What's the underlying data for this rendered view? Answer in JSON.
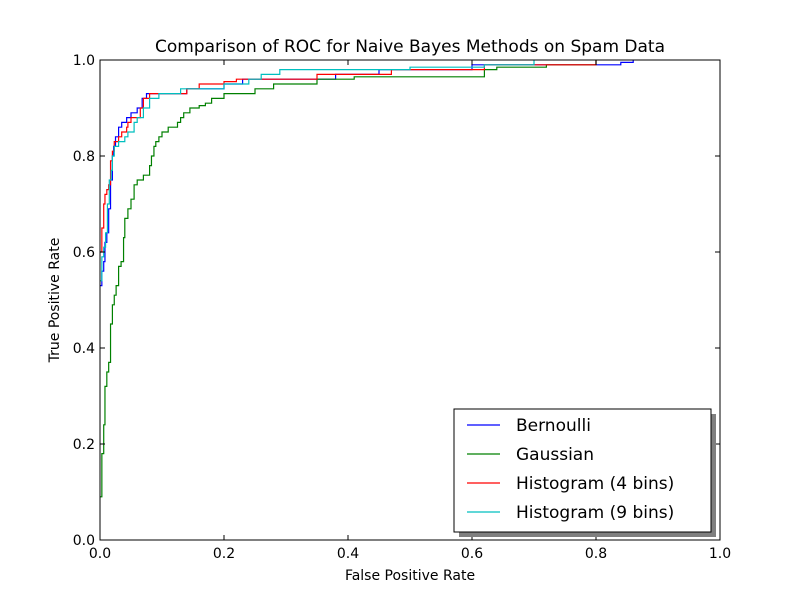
{
  "chart_data": {
    "type": "line",
    "title": "Comparison of ROC for Naive Bayes Methods on Spam Data",
    "xlabel": "False Positive Rate",
    "ylabel": "True Positive Rate",
    "xlim": [
      0.0,
      1.0
    ],
    "ylim": [
      0.0,
      1.0
    ],
    "xticks": [
      "0.0",
      "0.2",
      "0.4",
      "0.6",
      "0.8",
      "1.0"
    ],
    "yticks": [
      "0.0",
      "0.2",
      "0.4",
      "0.6",
      "0.8",
      "1.0"
    ],
    "grid": false,
    "legend_position": "lower-right",
    "series": [
      {
        "name": "Bernoulli",
        "color": "#0000ff",
        "points": [
          [
            0.0,
            0.53
          ],
          [
            0.003,
            0.53
          ],
          [
            0.003,
            0.56
          ],
          [
            0.006,
            0.56
          ],
          [
            0.006,
            0.58
          ],
          [
            0.008,
            0.58
          ],
          [
            0.008,
            0.62
          ],
          [
            0.011,
            0.62
          ],
          [
            0.011,
            0.64
          ],
          [
            0.014,
            0.64
          ],
          [
            0.014,
            0.69
          ],
          [
            0.017,
            0.69
          ],
          [
            0.017,
            0.75
          ],
          [
            0.02,
            0.75
          ],
          [
            0.02,
            0.8
          ],
          [
            0.022,
            0.8
          ],
          [
            0.022,
            0.82
          ],
          [
            0.025,
            0.82
          ],
          [
            0.025,
            0.84
          ],
          [
            0.03,
            0.84
          ],
          [
            0.03,
            0.86
          ],
          [
            0.035,
            0.86
          ],
          [
            0.035,
            0.87
          ],
          [
            0.043,
            0.87
          ],
          [
            0.043,
            0.88
          ],
          [
            0.05,
            0.88
          ],
          [
            0.05,
            0.89
          ],
          [
            0.06,
            0.89
          ],
          [
            0.06,
            0.9
          ],
          [
            0.068,
            0.9
          ],
          [
            0.068,
            0.92
          ],
          [
            0.075,
            0.92
          ],
          [
            0.075,
            0.93
          ],
          [
            0.14,
            0.93
          ],
          [
            0.14,
            0.94
          ],
          [
            0.2,
            0.94
          ],
          [
            0.2,
            0.95
          ],
          [
            0.23,
            0.95
          ],
          [
            0.23,
            0.96
          ],
          [
            0.38,
            0.96
          ],
          [
            0.38,
            0.97
          ],
          [
            0.45,
            0.97
          ],
          [
            0.45,
            0.98
          ],
          [
            0.6,
            0.98
          ],
          [
            0.6,
            0.99
          ],
          [
            0.84,
            0.99
          ],
          [
            0.84,
            0.995
          ],
          [
            0.86,
            0.995
          ],
          [
            0.86,
            1.0
          ]
        ]
      },
      {
        "name": "Gaussian",
        "color": "#008000",
        "points": [
          [
            0.0,
            0.09
          ],
          [
            0.003,
            0.09
          ],
          [
            0.003,
            0.18
          ],
          [
            0.006,
            0.18
          ],
          [
            0.006,
            0.24
          ],
          [
            0.008,
            0.24
          ],
          [
            0.008,
            0.32
          ],
          [
            0.011,
            0.32
          ],
          [
            0.011,
            0.35
          ],
          [
            0.014,
            0.35
          ],
          [
            0.014,
            0.37
          ],
          [
            0.017,
            0.37
          ],
          [
            0.017,
            0.45
          ],
          [
            0.02,
            0.45
          ],
          [
            0.02,
            0.49
          ],
          [
            0.023,
            0.49
          ],
          [
            0.023,
            0.51
          ],
          [
            0.026,
            0.51
          ],
          [
            0.026,
            0.53
          ],
          [
            0.03,
            0.53
          ],
          [
            0.03,
            0.57
          ],
          [
            0.034,
            0.57
          ],
          [
            0.034,
            0.58
          ],
          [
            0.038,
            0.58
          ],
          [
            0.038,
            0.63
          ],
          [
            0.04,
            0.63
          ],
          [
            0.04,
            0.67
          ],
          [
            0.045,
            0.67
          ],
          [
            0.045,
            0.69
          ],
          [
            0.05,
            0.69
          ],
          [
            0.05,
            0.71
          ],
          [
            0.055,
            0.71
          ],
          [
            0.055,
            0.74
          ],
          [
            0.06,
            0.74
          ],
          [
            0.06,
            0.75
          ],
          [
            0.07,
            0.75
          ],
          [
            0.07,
            0.76
          ],
          [
            0.08,
            0.76
          ],
          [
            0.08,
            0.78
          ],
          [
            0.083,
            0.78
          ],
          [
            0.083,
            0.8
          ],
          [
            0.087,
            0.8
          ],
          [
            0.087,
            0.82
          ],
          [
            0.09,
            0.82
          ],
          [
            0.09,
            0.83
          ],
          [
            0.095,
            0.83
          ],
          [
            0.095,
            0.84
          ],
          [
            0.1,
            0.84
          ],
          [
            0.1,
            0.85
          ],
          [
            0.11,
            0.85
          ],
          [
            0.11,
            0.86
          ],
          [
            0.125,
            0.86
          ],
          [
            0.125,
            0.87
          ],
          [
            0.13,
            0.87
          ],
          [
            0.13,
            0.88
          ],
          [
            0.135,
            0.88
          ],
          [
            0.135,
            0.89
          ],
          [
            0.145,
            0.89
          ],
          [
            0.145,
            0.9
          ],
          [
            0.16,
            0.9
          ],
          [
            0.16,
            0.905
          ],
          [
            0.17,
            0.905
          ],
          [
            0.17,
            0.91
          ],
          [
            0.18,
            0.91
          ],
          [
            0.18,
            0.92
          ],
          [
            0.2,
            0.92
          ],
          [
            0.2,
            0.93
          ],
          [
            0.25,
            0.93
          ],
          [
            0.25,
            0.94
          ],
          [
            0.28,
            0.94
          ],
          [
            0.28,
            0.95
          ],
          [
            0.35,
            0.95
          ],
          [
            0.35,
            0.96
          ],
          [
            0.41,
            0.96
          ],
          [
            0.41,
            0.965
          ],
          [
            0.62,
            0.965
          ],
          [
            0.62,
            0.98
          ],
          [
            0.64,
            0.98
          ],
          [
            0.64,
            0.985
          ],
          [
            0.72,
            0.985
          ],
          [
            0.72,
            0.99
          ],
          [
            0.8,
            0.99
          ],
          [
            0.8,
            1.0
          ]
        ]
      },
      {
        "name": "Histogram (4 bins)",
        "color": "#ff0000",
        "points": [
          [
            0.0,
            0.6
          ],
          [
            0.003,
            0.6
          ],
          [
            0.003,
            0.65
          ],
          [
            0.006,
            0.65
          ],
          [
            0.006,
            0.7
          ],
          [
            0.008,
            0.7
          ],
          [
            0.008,
            0.72
          ],
          [
            0.011,
            0.72
          ],
          [
            0.011,
            0.73
          ],
          [
            0.014,
            0.73
          ],
          [
            0.014,
            0.74
          ],
          [
            0.017,
            0.74
          ],
          [
            0.017,
            0.79
          ],
          [
            0.02,
            0.79
          ],
          [
            0.02,
            0.81
          ],
          [
            0.023,
            0.81
          ],
          [
            0.023,
            0.83
          ],
          [
            0.03,
            0.83
          ],
          [
            0.03,
            0.84
          ],
          [
            0.035,
            0.84
          ],
          [
            0.035,
            0.85
          ],
          [
            0.043,
            0.85
          ],
          [
            0.043,
            0.86
          ],
          [
            0.045,
            0.86
          ],
          [
            0.045,
            0.87
          ],
          [
            0.05,
            0.87
          ],
          [
            0.05,
            0.88
          ],
          [
            0.065,
            0.88
          ],
          [
            0.065,
            0.9
          ],
          [
            0.07,
            0.9
          ],
          [
            0.07,
            0.92
          ],
          [
            0.08,
            0.92
          ],
          [
            0.08,
            0.93
          ],
          [
            0.14,
            0.93
          ],
          [
            0.14,
            0.94
          ],
          [
            0.16,
            0.94
          ],
          [
            0.16,
            0.95
          ],
          [
            0.2,
            0.95
          ],
          [
            0.2,
            0.955
          ],
          [
            0.22,
            0.955
          ],
          [
            0.22,
            0.96
          ],
          [
            0.35,
            0.96
          ],
          [
            0.35,
            0.97
          ],
          [
            0.47,
            0.97
          ],
          [
            0.47,
            0.98
          ],
          [
            0.62,
            0.98
          ],
          [
            0.62,
            0.99
          ],
          [
            0.8,
            0.99
          ],
          [
            0.8,
            1.0
          ]
        ]
      },
      {
        "name": "Histogram (9 bins)",
        "color": "#00bfbf",
        "points": [
          [
            0.0,
            0.54
          ],
          [
            0.003,
            0.54
          ],
          [
            0.003,
            0.59
          ],
          [
            0.006,
            0.59
          ],
          [
            0.006,
            0.61
          ],
          [
            0.009,
            0.61
          ],
          [
            0.009,
            0.64
          ],
          [
            0.012,
            0.64
          ],
          [
            0.012,
            0.7
          ],
          [
            0.015,
            0.7
          ],
          [
            0.015,
            0.75
          ],
          [
            0.018,
            0.75
          ],
          [
            0.018,
            0.77
          ],
          [
            0.02,
            0.77
          ],
          [
            0.02,
            0.8
          ],
          [
            0.023,
            0.8
          ],
          [
            0.023,
            0.82
          ],
          [
            0.03,
            0.82
          ],
          [
            0.03,
            0.83
          ],
          [
            0.04,
            0.83
          ],
          [
            0.04,
            0.84
          ],
          [
            0.045,
            0.84
          ],
          [
            0.045,
            0.85
          ],
          [
            0.055,
            0.85
          ],
          [
            0.055,
            0.87
          ],
          [
            0.06,
            0.87
          ],
          [
            0.06,
            0.88
          ],
          [
            0.07,
            0.88
          ],
          [
            0.07,
            0.9
          ],
          [
            0.08,
            0.9
          ],
          [
            0.08,
            0.92
          ],
          [
            0.095,
            0.92
          ],
          [
            0.095,
            0.93
          ],
          [
            0.13,
            0.93
          ],
          [
            0.13,
            0.94
          ],
          [
            0.2,
            0.94
          ],
          [
            0.2,
            0.95
          ],
          [
            0.24,
            0.95
          ],
          [
            0.24,
            0.96
          ],
          [
            0.26,
            0.96
          ],
          [
            0.26,
            0.97
          ],
          [
            0.29,
            0.97
          ],
          [
            0.29,
            0.98
          ],
          [
            0.5,
            0.98
          ],
          [
            0.5,
            0.985
          ],
          [
            0.62,
            0.985
          ],
          [
            0.62,
            0.99
          ],
          [
            0.7,
            0.99
          ],
          [
            0.7,
            1.0
          ]
        ]
      }
    ]
  }
}
